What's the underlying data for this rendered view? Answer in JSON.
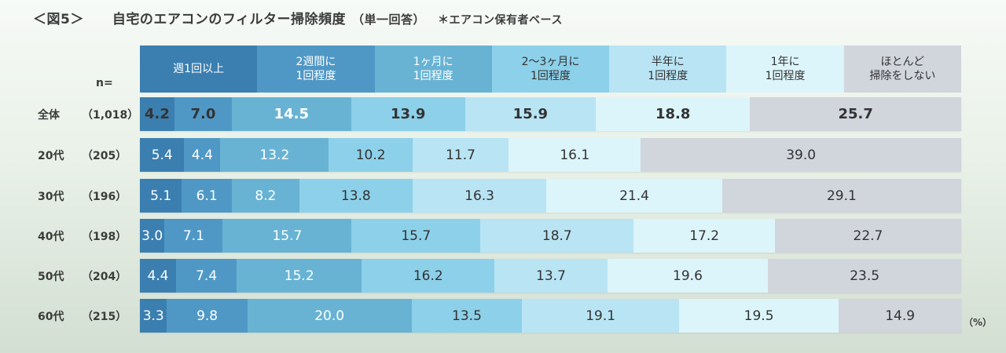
{
  "figure_label": "＜図5＞",
  "title": "自宅のエアコンのフィルター掃除頻度",
  "title_sub": "（単一回答）",
  "note": "＊エアコン保有者ベース",
  "n_label": "n=",
  "unit_label": "（%）",
  "colors": [
    "#3b7fb0",
    "#4f98c6",
    "#68b3d3",
    "#8dd0e9",
    "#b9e4f4",
    "#dcf5fb",
    "#d1d5dc"
  ],
  "text_colors": [
    "#ffffff",
    "#ffffff",
    "#ffffff",
    "#333333",
    "#333333",
    "#333333",
    "#333333"
  ],
  "chart_data": {
    "type": "bar",
    "orientation": "horizontal",
    "stacked": true,
    "percent_stacked": true,
    "categories": [
      "全体",
      "20代",
      "30代",
      "40代",
      "50代",
      "60代"
    ],
    "sample_sizes": [
      "（1,018）",
      "（205）",
      "（196）",
      "（198）",
      "（204）",
      "（215）"
    ],
    "series": [
      {
        "name": "週1回以上",
        "values": [
          4.2,
          5.4,
          5.1,
          3.0,
          4.4,
          3.3
        ]
      },
      {
        "name": "2週間に\n1回程度",
        "values": [
          7.0,
          4.4,
          6.1,
          7.1,
          7.4,
          9.8
        ]
      },
      {
        "name": "1ヶ月に\n1回程度",
        "values": [
          14.5,
          13.2,
          8.2,
          15.7,
          15.2,
          20.0
        ]
      },
      {
        "name": "2～3ヶ月に\n1回程度",
        "values": [
          13.9,
          10.2,
          13.8,
          15.7,
          16.2,
          13.5
        ]
      },
      {
        "name": "半年に\n1回程度",
        "values": [
          15.9,
          11.7,
          16.3,
          18.7,
          13.7,
          19.1
        ]
      },
      {
        "name": "1年に\n1回程度",
        "values": [
          18.8,
          16.1,
          21.4,
          17.2,
          19.6,
          19.5
        ]
      },
      {
        "name": "ほとんど\n掃除をしない",
        "values": [
          25.7,
          39.0,
          29.1,
          22.7,
          23.5,
          14.9
        ]
      }
    ],
    "xlim": [
      0,
      100
    ],
    "unit": "%"
  }
}
